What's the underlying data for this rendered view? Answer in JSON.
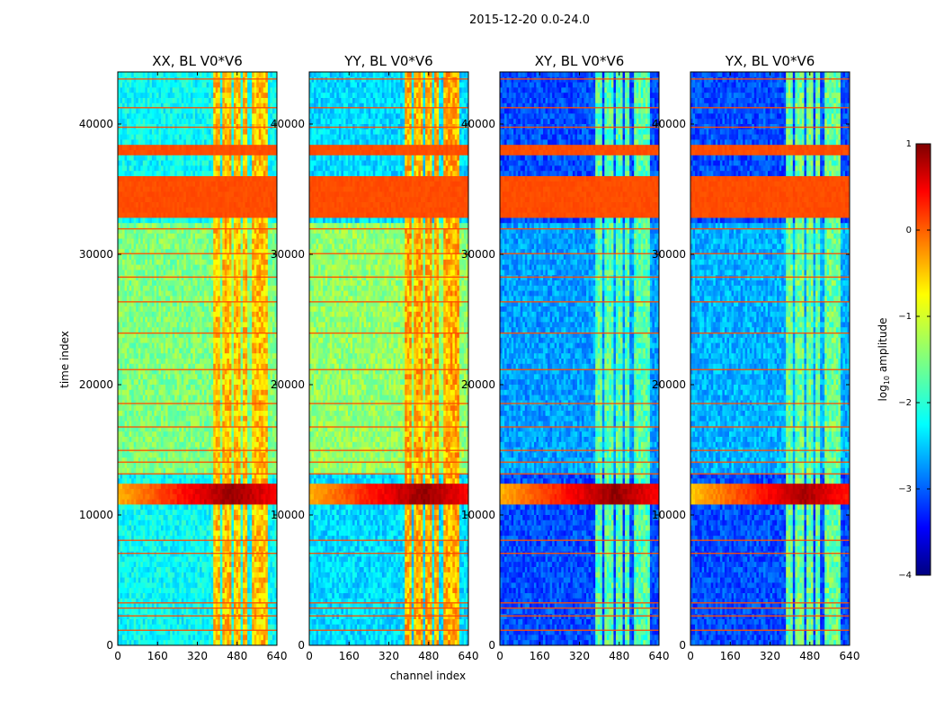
{
  "chart_data": {
    "type": "heatmap",
    "suptitle": "2015-12-20 0.0-24.0",
    "xlabel": "channel index",
    "ylabel": "time index",
    "xlim": [
      0,
      640
    ],
    "ylim": [
      0,
      44000
    ],
    "xticks": [
      0,
      160,
      320,
      480,
      640
    ],
    "yticks": [
      0,
      10000,
      20000,
      30000,
      40000
    ],
    "colormap": "jet",
    "colorbar": {
      "label_prefix": "log",
      "label_sub": "10",
      "label_suffix": " amplitude",
      "range": [
        -4,
        1
      ],
      "ticks": [
        1,
        0,
        -1,
        -2,
        -3,
        -4
      ],
      "tick_labels": [
        "1",
        "0",
        "−1",
        "−2",
        "−3",
        "−4"
      ]
    },
    "panels": [
      {
        "title": "XX, BL V0*V6",
        "base_level": -2.1,
        "mid_level": -1.5,
        "band_level": 0.0,
        "burst_level": 0.9
      },
      {
        "title": "YY, BL V0*V6",
        "base_level": -2.3,
        "mid_level": -1.4,
        "band_level": 0.0,
        "burst_level": 0.9
      },
      {
        "title": "XY, BL V0*V6",
        "base_level": -3.0,
        "mid_level": -2.6,
        "band_level": 0.0,
        "burst_level": 0.9
      },
      {
        "title": "YX, BL V0*V6",
        "base_level": -3.0,
        "mid_level": -2.5,
        "band_level": 0.0,
        "burst_level": 0.8
      }
    ],
    "features": {
      "rfi_channel_bands": [
        [
          385,
          410
        ],
        [
          425,
          455
        ],
        [
          470,
          490
        ],
        [
          505,
          520
        ],
        [
          535,
          575
        ],
        [
          580,
          600
        ]
      ],
      "saturated_time_bands": [
        [
          33000,
          35800
        ],
        [
          37700,
          38300
        ]
      ],
      "broadband_burst_time": [
        11000,
        12300
      ],
      "elevated_region_time": [
        13000,
        32500
      ]
    }
  }
}
